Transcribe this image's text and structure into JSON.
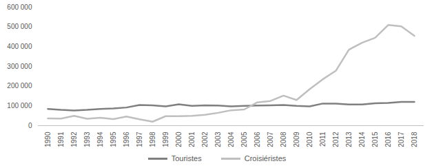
{
  "chart_data": {
    "type": "line",
    "categories": [
      "1990",
      "1991",
      "1992",
      "1993",
      "1994",
      "1995",
      "1996",
      "1997",
      "1998",
      "1999",
      "2000",
      "2001",
      "2002",
      "2003",
      "2004",
      "2005",
      "2006",
      "2007",
      "2008",
      "2009",
      "2010",
      "2011",
      "2012",
      "2013",
      "2014",
      "2015",
      "2016",
      "2017",
      "2018"
    ],
    "series": [
      {
        "name": "Touristes",
        "color": "#7f7f7f",
        "values": [
          85000,
          80000,
          77000,
          80000,
          85000,
          87000,
          92000,
          105000,
          103000,
          98000,
          108000,
          100000,
          103000,
          102000,
          98000,
          100000,
          102000,
          103000,
          105000,
          100000,
          98000,
          112000,
          112000,
          107000,
          107000,
          113000,
          115000,
          120000,
          120000
        ]
      },
      {
        "name": "Croisiéristes",
        "color": "#bfbfbf",
        "values": [
          37000,
          36000,
          50000,
          35000,
          40000,
          33000,
          46000,
          32000,
          20000,
          48000,
          48000,
          50000,
          55000,
          65000,
          78000,
          82000,
          118000,
          125000,
          152000,
          130000,
          185000,
          235000,
          278000,
          385000,
          420000,
          445000,
          510000,
          503000,
          455000
        ]
      }
    ],
    "ylim": [
      0,
      600000
    ],
    "yticks": [
      0,
      {
        "value": 100000,
        "label": "100 000"
      },
      {
        "value": 200000,
        "label": "200 000"
      },
      {
        "value": 300000,
        "label": "300 000"
      },
      {
        "value": 400000,
        "label": "400 000"
      },
      {
        "value": 500000,
        "label": "500 000"
      },
      {
        "value": 600000,
        "label": "600 000"
      }
    ],
    "grid": false,
    "legend": "bottom"
  }
}
